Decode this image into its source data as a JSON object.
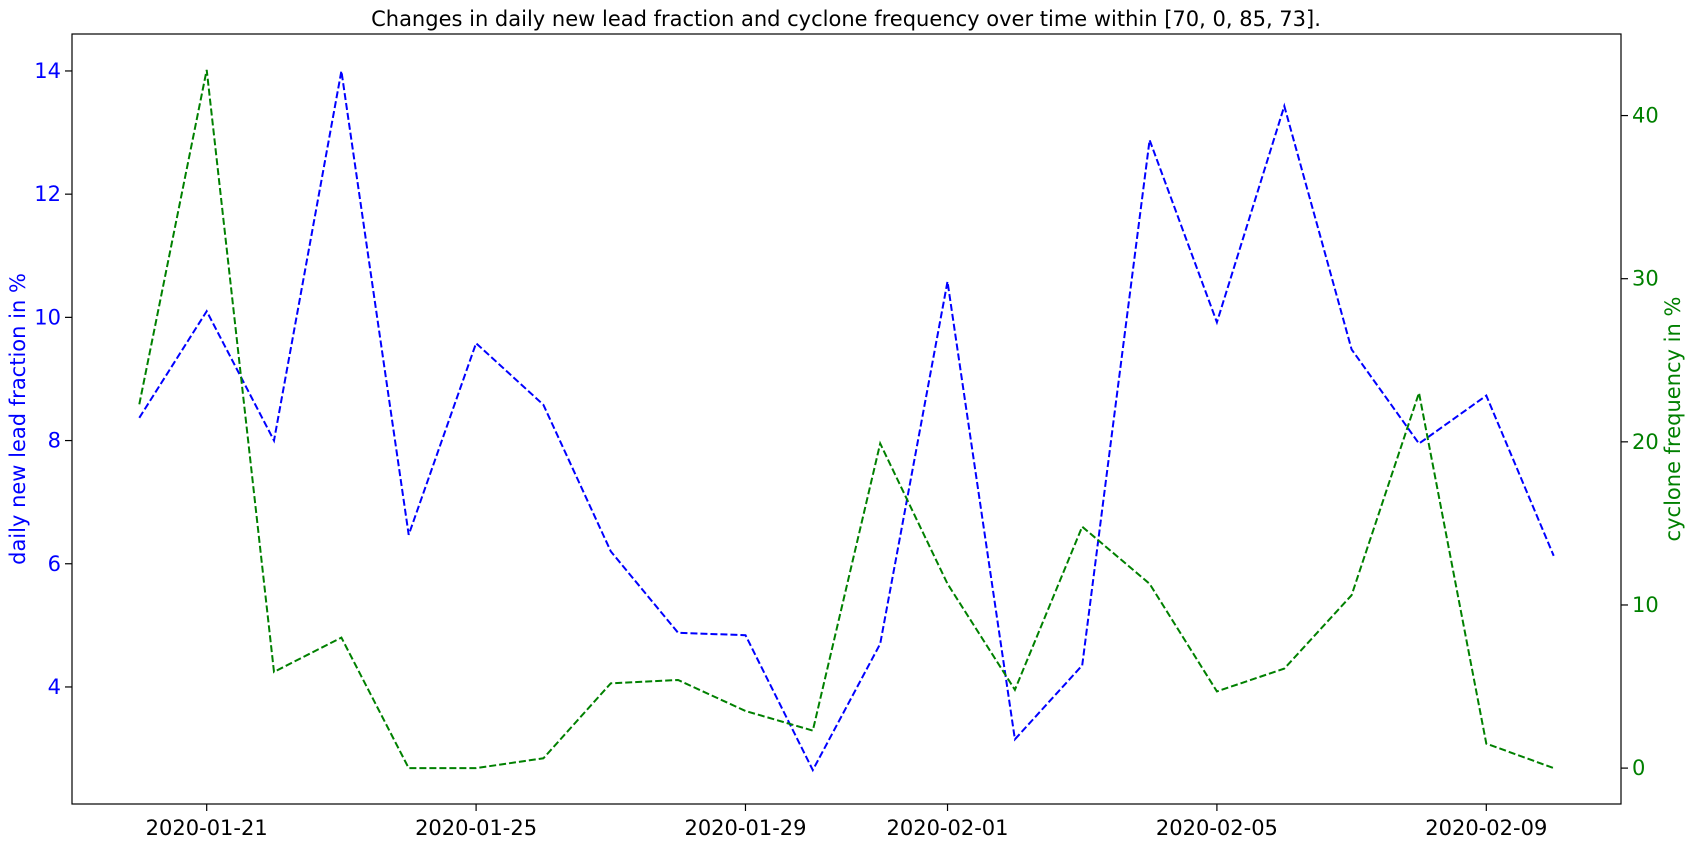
{
  "chart_data": {
    "type": "line",
    "title": "Changes in daily new lead fraction and cyclone frequency over time within [70, 0, 85, 73].",
    "x": [
      "2020-01-20",
      "2020-01-21",
      "2020-01-22",
      "2020-01-23",
      "2020-01-24",
      "2020-01-25",
      "2020-01-26",
      "2020-01-27",
      "2020-01-28",
      "2020-01-29",
      "2020-01-30",
      "2020-01-31",
      "2020-02-01",
      "2020-02-02",
      "2020-02-03",
      "2020-02-04",
      "2020-02-05",
      "2020-02-06",
      "2020-02-07",
      "2020-02-08",
      "2020-02-09",
      "2020-02-10"
    ],
    "xticks": [
      "2020-01-21",
      "2020-01-25",
      "2020-01-29",
      "2020-02-01",
      "2020-02-05",
      "2020-02-09"
    ],
    "xlim": [
      "2020-01-19T00:00",
      "2020-02-11T00:00"
    ],
    "grid": false,
    "axes": {
      "left": {
        "label": "daily new lead fraction in %",
        "color": "#0000ff",
        "ylim": [
          2.1,
          14.6
        ],
        "ticks": [
          4,
          6,
          8,
          10,
          12,
          14
        ]
      },
      "right": {
        "label": "cyclone frequency in %",
        "color": "#008000",
        "ylim": [
          -2.2,
          45.0
        ],
        "ticks": [
          0,
          10,
          20,
          30,
          40
        ]
      }
    },
    "series": [
      {
        "axis": "left",
        "color": "#0000ff",
        "linestyle": "dashed",
        "values": [
          8.37,
          10.1,
          8.0,
          14.0,
          6.47,
          9.58,
          8.58,
          6.2,
          4.88,
          4.84,
          2.65,
          4.7,
          10.58,
          3.15,
          4.35,
          12.88,
          9.92,
          13.43,
          9.48,
          7.95,
          8.73,
          6.13
        ]
      },
      {
        "axis": "right",
        "color": "#008000",
        "linestyle": "dashed",
        "values": [
          22.3,
          42.8,
          5.9,
          8.0,
          0.0,
          0.0,
          0.6,
          5.2,
          5.4,
          3.5,
          2.3,
          19.9,
          11.3,
          4.8,
          14.8,
          11.3,
          4.7,
          6.1,
          10.6,
          23.0,
          1.5,
          0.0
        ]
      }
    ]
  }
}
